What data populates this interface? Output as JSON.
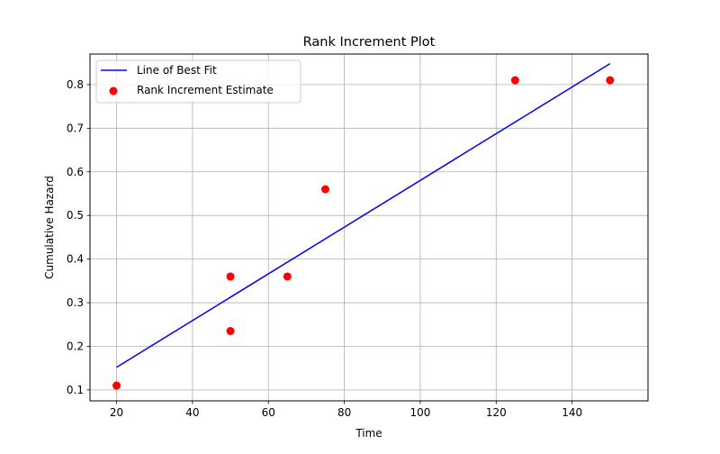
{
  "chart_data": {
    "type": "scatter",
    "title": "Rank Increment Plot",
    "xlabel": "Time",
    "ylabel": "Cumulative Hazard",
    "xlim": [
      13,
      160
    ],
    "ylim": [
      0.075,
      0.87
    ],
    "xticks": [
      20,
      40,
      60,
      80,
      100,
      120,
      140
    ],
    "xtick_labels": [
      "20",
      "40",
      "60",
      "80",
      "100",
      "120",
      "140"
    ],
    "yticks": [
      0.1,
      0.2,
      0.3,
      0.4,
      0.5,
      0.6,
      0.7,
      0.8
    ],
    "ytick_labels": [
      "0.1",
      "0.2",
      "0.3",
      "0.4",
      "0.5",
      "0.6",
      "0.7",
      "0.8"
    ],
    "grid": true,
    "legend_position": "upper-left",
    "series": [
      {
        "name": "Line of Best Fit",
        "kind": "line",
        "color": "#0000ff",
        "x": [
          20,
          150
        ],
        "y": [
          0.152,
          0.848
        ]
      },
      {
        "name": "Rank Increment Estimate",
        "kind": "scatter",
        "color": "#ff0000",
        "x": [
          20,
          50,
          50,
          65,
          75,
          125,
          150
        ],
        "y": [
          0.11,
          0.36,
          0.235,
          0.36,
          0.56,
          0.81,
          0.81
        ]
      }
    ]
  }
}
